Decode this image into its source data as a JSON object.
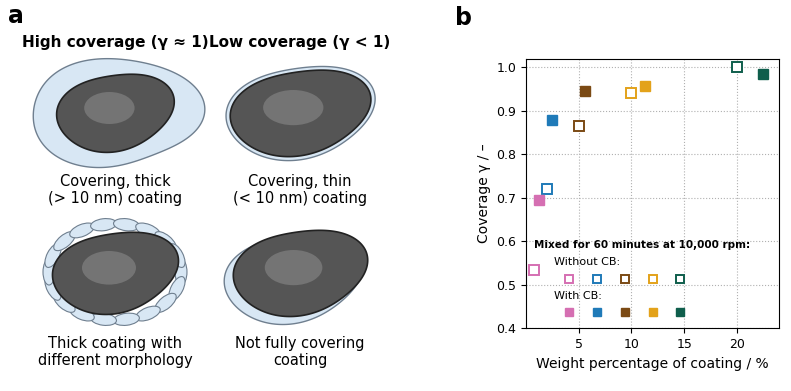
{
  "panel_labels": [
    "a",
    "b"
  ],
  "diagram": {
    "columns": [
      {
        "heading": "High coverage (γ ≈ 1)",
        "items": [
          "Covering, thick\n(> 10 nm) coating",
          "Thick coating with\ndifferent morphology"
        ]
      },
      {
        "heading": "Low coverage (γ < 1)",
        "items": [
          "Covering, thin\n(< 10 nm) coating",
          "Not fully covering\ncoating"
        ]
      }
    ]
  },
  "chart_data": {
    "type": "scatter",
    "x_label": "Weight percentage of coating / %",
    "y_label": "Coverage γ / –",
    "xlim": [
      0,
      24
    ],
    "xticks": [
      5,
      10,
      15,
      20
    ],
    "ylim": [
      0.4,
      1.02
    ],
    "yticks": [
      0.4,
      0.5,
      0.6,
      0.7,
      0.8,
      0.9,
      1.0
    ],
    "grid": true,
    "legend": "lower left",
    "legend_title": "Mixed for 60 minutes at 10,000 rpm:",
    "series": [
      {
        "name": "Without CB:",
        "marker": "open_square",
        "colors": [
          "#d56fb2",
          "#1f7ab8",
          "#7b4a14",
          "#e3a21a",
          "#0f5e4c"
        ],
        "x": [
          0.8,
          2.0,
          5.0,
          10.0,
          20.0
        ],
        "values": [
          0.535,
          0.72,
          0.865,
          0.94,
          1.0
        ]
      },
      {
        "name": "With CB:",
        "marker": "square",
        "colors": [
          "#d56fb2",
          "#1f7ab8",
          "#7b4a14",
          "#e3a21a",
          "#0f5e4c"
        ],
        "x": [
          1.2,
          2.5,
          5.6,
          11.3,
          22.5
        ],
        "values": [
          0.695,
          0.88,
          0.945,
          0.958,
          0.985
        ]
      }
    ]
  }
}
